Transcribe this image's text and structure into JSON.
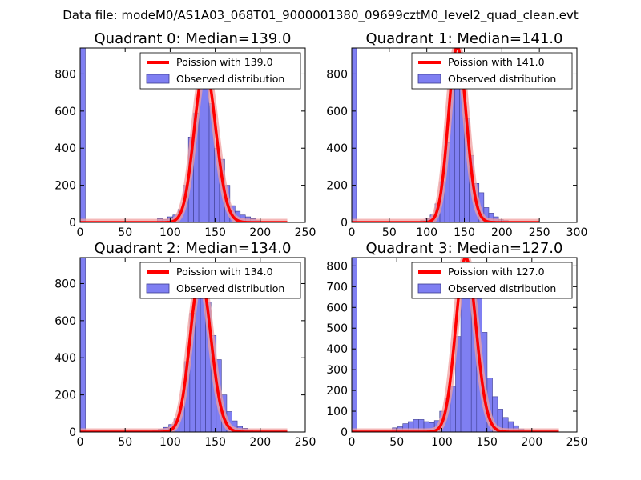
{
  "figure": {
    "suptitle": "Data file: modeM0/AS1A03_068T01_9000001380_09699cztM0_level2_quad_clean.evt"
  },
  "colors": {
    "bar_fill": "#7f7ff2",
    "bar_edge": "#3d3d8f",
    "poisson_line": "#ff0000",
    "poisson_glow": "#f0a0a0",
    "axis": "#000000",
    "background": "#ffffff"
  },
  "chart_data": [
    {
      "type": "bar",
      "title": "Quadrant 0: Median=139.0",
      "median": 139.0,
      "xlim": [
        0,
        250
      ],
      "ylim": [
        0,
        940
      ],
      "xticks": [
        0,
        50,
        100,
        150,
        200,
        250
      ],
      "yticks": [
        0,
        200,
        400,
        600,
        800
      ],
      "bin_width": 5.75,
      "bins_x": [
        0,
        80,
        85.75,
        91.5,
        97.25,
        103,
        108.75,
        114.5,
        120.25,
        126,
        131.75,
        137.5,
        143.25,
        149,
        154.75,
        160.5,
        166.25,
        172,
        177.75,
        183.5,
        189.25,
        195,
        200.75,
        206.5
      ],
      "bins_count": [
        940,
        5,
        20,
        15,
        30,
        40,
        70,
        200,
        460,
        590,
        770,
        800,
        640,
        400,
        340,
        200,
        90,
        60,
        40,
        30,
        20,
        10,
        5,
        2
      ],
      "poisson_x_range": [
        0,
        230
      ],
      "legend": [
        "Poission with 139.0",
        "Observed distribution"
      ]
    },
    {
      "type": "bar",
      "title": "Quadrant 1: Median=141.0",
      "median": 141.0,
      "xlim": [
        0,
        300
      ],
      "ylim": [
        0,
        940
      ],
      "xticks": [
        0,
        50,
        100,
        150,
        200,
        250,
        300
      ],
      "yticks": [
        0,
        200,
        400,
        600,
        800
      ],
      "bin_width": 6.5,
      "bins_x": [
        0,
        85,
        91.5,
        98,
        104.5,
        111,
        117.5,
        124,
        130.5,
        137,
        143.5,
        150,
        156.5,
        163,
        169.5,
        176,
        182.5,
        189,
        195.5,
        202,
        208.5,
        215
      ],
      "bins_count": [
        940,
        5,
        10,
        20,
        40,
        100,
        220,
        430,
        760,
        900,
        760,
        560,
        360,
        210,
        160,
        80,
        50,
        30,
        15,
        10,
        5,
        2
      ],
      "poisson_x_range": [
        0,
        250
      ],
      "legend": [
        "Poission with 141.0",
        "Observed distribution"
      ]
    },
    {
      "type": "bar",
      "title": "Quadrant 2: Median=134.0",
      "median": 134.0,
      "xlim": [
        0,
        250
      ],
      "ylim": [
        0,
        940
      ],
      "xticks": [
        0,
        50,
        100,
        150,
        200,
        250
      ],
      "yticks": [
        0,
        200,
        400,
        600,
        800
      ],
      "bin_width": 5.85,
      "bins_x": [
        0,
        75,
        80.85,
        86.7,
        92.55,
        98.4,
        104.25,
        110.1,
        115.95,
        121.8,
        127.65,
        133.5,
        139.35,
        145.2,
        151.05,
        156.9,
        162.75,
        168.6,
        174.45,
        180.3,
        186.15,
        192,
        197.85,
        203.7
      ],
      "bins_count": [
        940,
        5,
        10,
        15,
        25,
        40,
        70,
        140,
        380,
        640,
        760,
        800,
        700,
        520,
        390,
        200,
        110,
        60,
        30,
        20,
        10,
        5,
        2,
        1
      ],
      "poisson_x_range": [
        0,
        230
      ],
      "legend": [
        "Poission with 134.0",
        "Observed distribution"
      ]
    },
    {
      "type": "bar",
      "title": "Quadrant 3: Median=127.0",
      "median": 127.0,
      "xlim": [
        0,
        250
      ],
      "ylim": [
        0,
        840
      ],
      "xticks": [
        0,
        50,
        100,
        150,
        200,
        250
      ],
      "yticks": [
        0,
        100,
        200,
        300,
        400,
        500,
        600,
        700,
        800
      ],
      "bin_width": 5.85,
      "bins_x": [
        0,
        45,
        50.85,
        56.7,
        62.55,
        68.4,
        74.25,
        80.1,
        85.95,
        91.8,
        97.65,
        103.5,
        109.35,
        115.2,
        121.05,
        126.9,
        132.75,
        138.6,
        144.45,
        150.3,
        156.15,
        162,
        167.85,
        173.7,
        179.55,
        185.4,
        191.25
      ],
      "bins_count": [
        840,
        20,
        25,
        40,
        50,
        60,
        60,
        50,
        45,
        55,
        100,
        160,
        220,
        460,
        650,
        760,
        800,
        700,
        480,
        260,
        170,
        110,
        70,
        50,
        30,
        15,
        5
      ],
      "poisson_x_range": [
        0,
        230
      ],
      "legend": [
        "Poission with 127.0",
        "Observed distribution"
      ]
    }
  ]
}
